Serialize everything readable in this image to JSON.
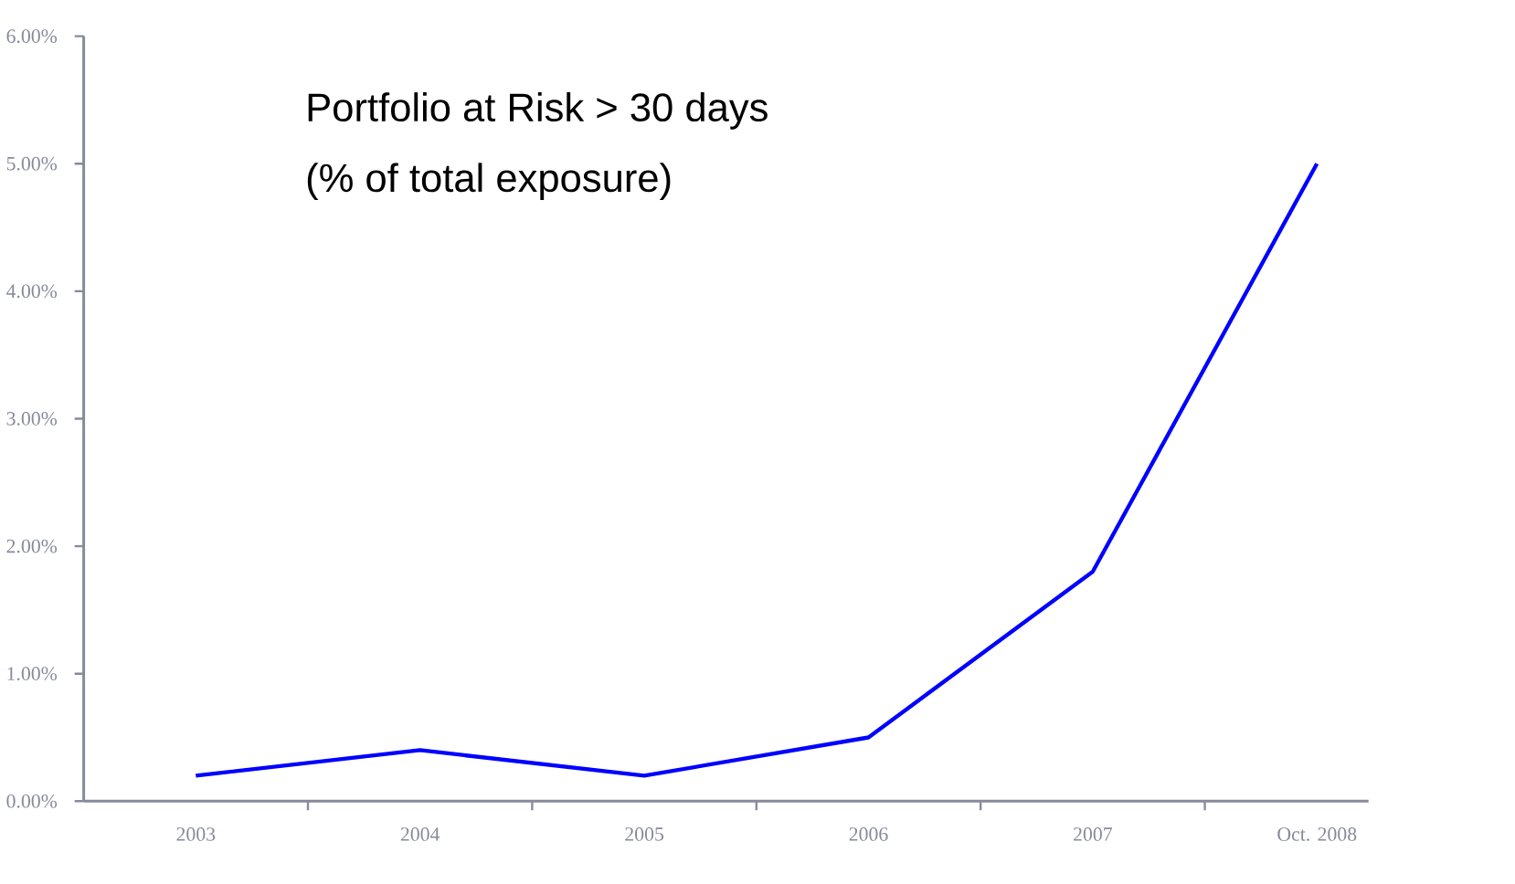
{
  "chart_data": {
    "type": "line",
    "title": "Portfolio at Risk > 30 days",
    "subtitle": "(% of total exposure)",
    "categories": [
      "2003",
      "2004",
      "2005",
      "2006",
      "2007",
      "Oct. 2008"
    ],
    "series": [
      {
        "color": "#0000ff",
        "values": [
          0.2,
          0.4,
          0.2,
          0.5,
          1.8,
          5.0
        ]
      }
    ],
    "ylim": [
      0,
      6
    ],
    "yticks": [
      {
        "value": 0,
        "label": "0.00%"
      },
      {
        "value": 1,
        "label": "1.00%"
      },
      {
        "value": 2,
        "label": "2.00%"
      },
      {
        "value": 3,
        "label": "3.00%"
      },
      {
        "value": 4,
        "label": "4.00%"
      },
      {
        "value": 5,
        "label": "5.00%"
      },
      {
        "value": 6,
        "label": "6.00%"
      }
    ],
    "marker": "none",
    "line_style": "solid"
  }
}
